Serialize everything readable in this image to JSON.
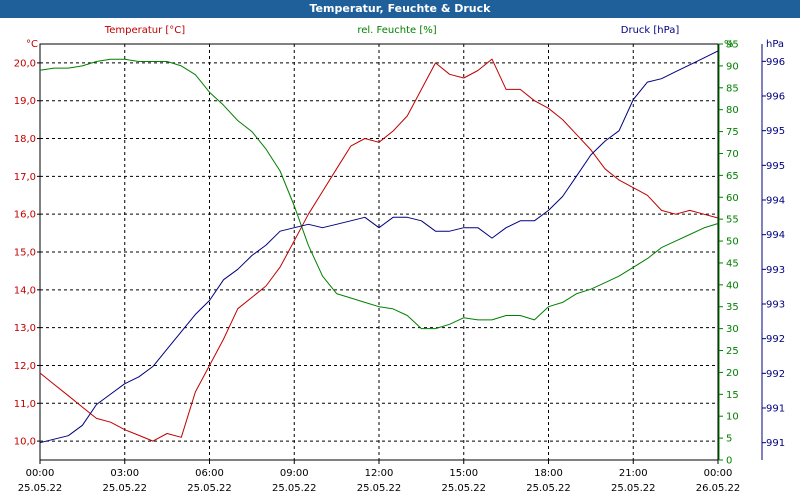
{
  "window": {
    "title": "Temperatur, Feuchte & Druck"
  },
  "chart_data": {
    "type": "line",
    "title": "Temperatur, Feuchte & Druck",
    "x_ticks": [
      {
        "time": "00:00",
        "date": "25.05.22"
      },
      {
        "time": "03:00",
        "date": "25.05.22"
      },
      {
        "time": "06:00",
        "date": "25.05.22"
      },
      {
        "time": "09:00",
        "date": "25.05.22"
      },
      {
        "time": "12:00",
        "date": "25.05.22"
      },
      {
        "time": "15:00",
        "date": "25.05.22"
      },
      {
        "time": "18:00",
        "date": "25.05.22"
      },
      {
        "time": "21:00",
        "date": "25.05.22"
      },
      {
        "time": "00:00",
        "date": "26.05.22"
      }
    ],
    "x_range_hours": [
      0,
      24
    ],
    "grid": true,
    "axes": {
      "left": {
        "label": "Temperatur [°C]",
        "unit": "°C",
        "color": "#c00000",
        "range": [
          9.5,
          20.5
        ],
        "tick_labels": [
          "10,0",
          "11,0",
          "12,0",
          "13,0",
          "14,0",
          "15,0",
          "16,0",
          "17,0",
          "18,0",
          "19,0",
          "20,0"
        ],
        "tick_values": [
          10,
          11,
          12,
          13,
          14,
          15,
          16,
          17,
          18,
          19,
          20
        ]
      },
      "middle": {
        "label": "rel. Feuchte [%]",
        "unit": "%",
        "color": "#008000",
        "range": [
          0,
          95
        ],
        "tick_labels": [
          "0",
          "5",
          "10",
          "15",
          "20",
          "25",
          "30",
          "35",
          "40",
          "45",
          "50",
          "55",
          "60",
          "65",
          "70",
          "75",
          "80",
          "85",
          "90",
          "95"
        ],
        "tick_values": [
          0,
          5,
          10,
          15,
          20,
          25,
          30,
          35,
          40,
          45,
          50,
          55,
          60,
          65,
          70,
          75,
          80,
          85,
          90,
          95
        ]
      },
      "right": {
        "label": "Druck [hPa]",
        "unit": "hPa",
        "color": "#000080",
        "range": [
          990.5,
          996.5
        ],
        "tick_labels": [
          "991",
          "991",
          "992",
          "992",
          "993",
          "993",
          "994",
          "994",
          "995",
          "995",
          "996",
          "996"
        ],
        "tick_values": [
          990.75,
          991.25,
          991.75,
          992.25,
          992.75,
          993.25,
          993.75,
          994.25,
          994.75,
          995.25,
          995.75,
          996.25
        ]
      }
    },
    "series": [
      {
        "name": "Temperatur [°C]",
        "axis": "left",
        "color": "#c00000",
        "x": [
          0,
          0.5,
          1,
          1.5,
          2,
          2.5,
          3,
          3.5,
          4,
          4.5,
          5,
          5.5,
          6,
          6.5,
          7,
          7.5,
          8,
          8.5,
          9,
          9.5,
          10,
          10.5,
          11,
          11.5,
          12,
          12.5,
          13,
          13.5,
          14,
          14.5,
          15,
          15.5,
          16,
          16.5,
          17,
          17.5,
          18,
          18.5,
          19,
          19.5,
          20,
          20.5,
          21,
          21.5,
          22,
          22.5,
          23,
          23.5,
          24
        ],
        "values": [
          11.8,
          11.5,
          11.2,
          10.9,
          10.6,
          10.5,
          10.3,
          10.15,
          10.0,
          10.2,
          10.1,
          11.3,
          12.0,
          12.7,
          13.5,
          13.8,
          14.1,
          14.6,
          15.3,
          16.0,
          16.6,
          17.2,
          17.8,
          18.0,
          17.9,
          18.2,
          18.6,
          19.3,
          20.0,
          19.7,
          19.6,
          19.8,
          20.1,
          19.3,
          19.3,
          19.0,
          18.8,
          18.5,
          18.1,
          17.7,
          17.2,
          16.9,
          16.7,
          16.5,
          16.1,
          16.0,
          16.1,
          16.0,
          15.9
        ]
      },
      {
        "name": "rel. Feuchte [%]",
        "axis": "middle",
        "color": "#008000",
        "x": [
          0,
          0.5,
          1,
          1.5,
          2,
          2.5,
          3,
          3.5,
          4,
          4.5,
          5,
          5.5,
          6,
          6.5,
          7,
          7.5,
          8,
          8.5,
          9,
          9.5,
          10,
          10.5,
          11,
          11.5,
          12,
          12.5,
          13,
          13.5,
          14,
          14.5,
          15,
          15.5,
          16,
          16.5,
          17,
          17.5,
          18,
          18.5,
          19,
          19.5,
          20,
          20.5,
          21,
          21.5,
          22,
          22.5,
          23,
          23.5,
          24
        ],
        "values": [
          89,
          89.5,
          89.5,
          90,
          91,
          91.5,
          91.5,
          91,
          91,
          91,
          90,
          88,
          84,
          81,
          77.5,
          75,
          71,
          66,
          58,
          49,
          42,
          38,
          37,
          36,
          35,
          34.5,
          33,
          30,
          30,
          31,
          32.5,
          32,
          32,
          33,
          33,
          32,
          35,
          36,
          38,
          39,
          40.5,
          42,
          44,
          46,
          48.5,
          50,
          51.5,
          53,
          54
        ]
      },
      {
        "name": "Druck [hPa]",
        "axis": "right",
        "color": "#000080",
        "x": [
          0,
          0.5,
          1,
          1.5,
          2,
          2.5,
          3,
          3.5,
          4,
          4.5,
          5,
          5.5,
          6,
          6.5,
          7,
          7.5,
          8,
          8.5,
          9,
          9.5,
          10,
          10.5,
          11,
          11.5,
          12,
          12.5,
          13,
          13.5,
          14,
          14.5,
          15,
          15.5,
          16,
          16.5,
          17,
          17.5,
          18,
          18.5,
          19,
          19.5,
          20,
          20.5,
          21,
          21.5,
          22,
          22.5,
          23,
          23.5,
          24
        ],
        "values": [
          990.75,
          990.8,
          990.85,
          991.0,
          991.3,
          991.45,
          991.6,
          991.7,
          991.85,
          992.1,
          992.35,
          992.6,
          992.8,
          993.1,
          993.25,
          993.45,
          993.6,
          993.8,
          993.85,
          993.9,
          993.85,
          993.9,
          993.95,
          994.0,
          993.85,
          994.0,
          994.0,
          993.95,
          993.8,
          993.8,
          993.85,
          993.85,
          993.7,
          993.85,
          993.95,
          993.95,
          994.1,
          994.3,
          994.6,
          994.9,
          995.1,
          995.25,
          995.7,
          995.95,
          996.0,
          996.1,
          996.2,
          996.3,
          996.4
        ]
      }
    ]
  }
}
